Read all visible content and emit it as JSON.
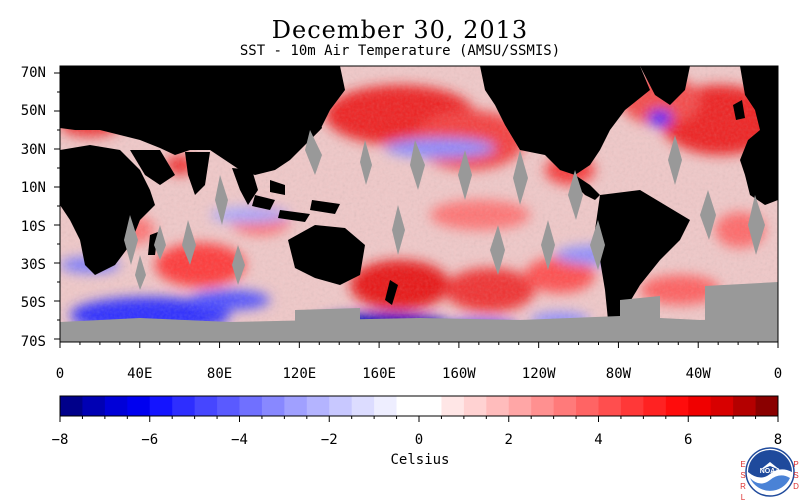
{
  "title": "December 30, 2013",
  "subtitle": "SST - 10m Air Temperature (AMSU/SSMIS)",
  "map": {
    "latitude_labels": [
      "70N",
      "50N",
      "30N",
      "10N",
      "10S",
      "30S",
      "50S",
      "70S"
    ],
    "longitude_labels": [
      "0",
      "40E",
      "80E",
      "120E",
      "160E",
      "160W",
      "120W",
      "80W",
      "40W",
      "0"
    ],
    "colors": {
      "land": "#000000",
      "missing_data": "#999999",
      "ocean_background": "#f0c8c8"
    }
  },
  "colorbar": {
    "min": -8,
    "max": 8,
    "step": 0.5,
    "tick_labels": [
      "−8",
      "−6",
      "−4",
      "−2",
      "0",
      "2",
      "4",
      "6",
      "8"
    ],
    "unit": "Celsius",
    "colors": [
      "#00008a",
      "#0000b4",
      "#0000d8",
      "#0000f0",
      "#1414ff",
      "#2e2eff",
      "#4646ff",
      "#5a5aff",
      "#7070ff",
      "#8888ff",
      "#a0a0ff",
      "#b4b4ff",
      "#c8c8ff",
      "#dcdcff",
      "#eeeeff",
      "#ffffff",
      "#ffffff",
      "#ffe6e6",
      "#ffd2d2",
      "#ffbcbc",
      "#ffa6a6",
      "#ff9090",
      "#ff7a7a",
      "#ff6464",
      "#ff4e4e",
      "#ff3838",
      "#ff2222",
      "#ff0c0c",
      "#f00000",
      "#d80000",
      "#b40000",
      "#8a0000"
    ]
  },
  "logo": {
    "left_letters": [
      "E",
      "S",
      "R",
      "L"
    ],
    "right_letters": [
      "P",
      "S",
      "D"
    ],
    "emblem_text": "NOAA"
  }
}
